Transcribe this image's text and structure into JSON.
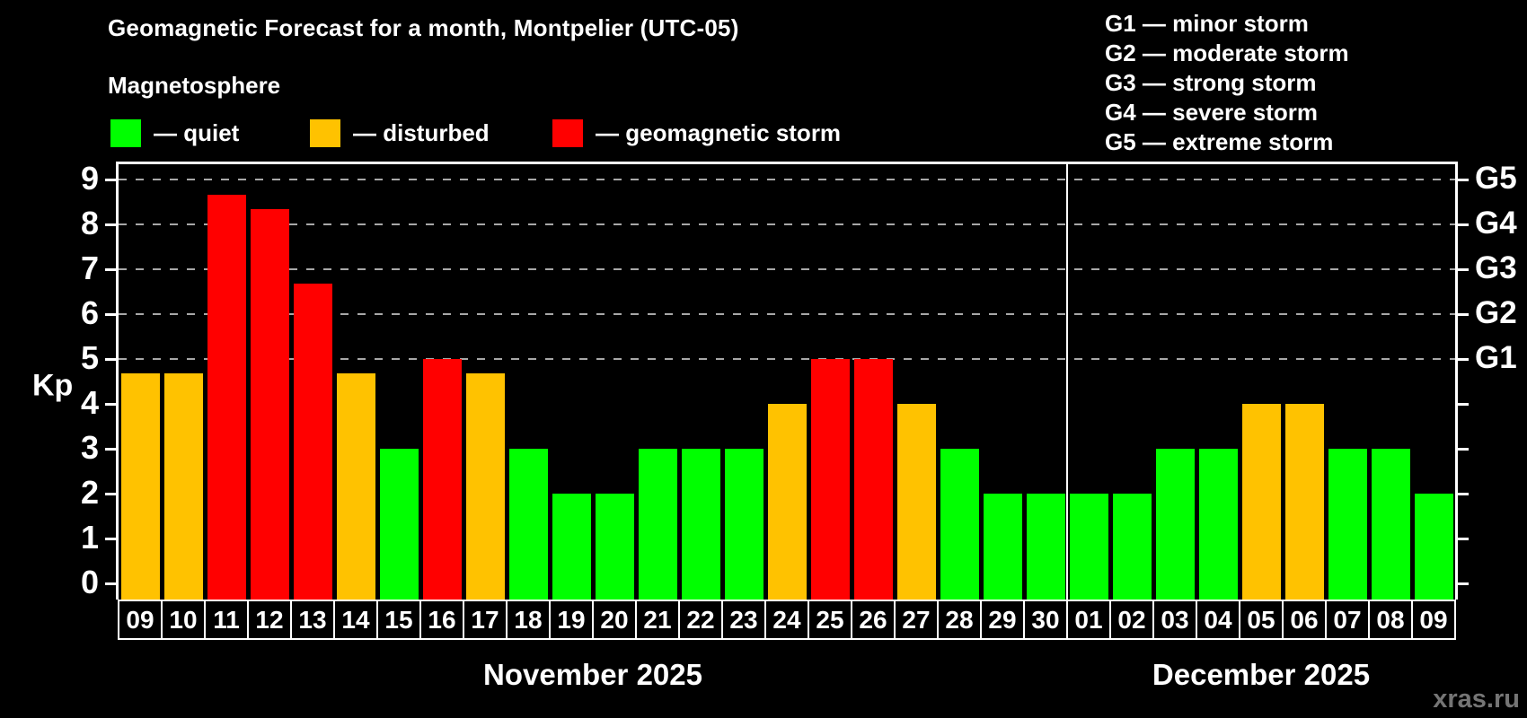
{
  "header": {
    "title": "Geomagnetic Forecast for a month, Montpelier (UTC-05)",
    "subtitle": "Magnetosphere"
  },
  "legend": {
    "items": [
      {
        "status": "quiet",
        "label": "— quiet",
        "color": "#00ff00"
      },
      {
        "status": "disturbed",
        "label": "— disturbed",
        "color": "#ffc200"
      },
      {
        "status": "storm",
        "label": "— geomagnetic storm",
        "color": "#ff0000"
      }
    ]
  },
  "g_legend": {
    "lines": [
      "G1 — minor storm",
      "G2 — moderate storm",
      "G3 — strong storm",
      "G4 — severe storm",
      "G5 — extreme storm"
    ]
  },
  "chart_data": {
    "type": "bar",
    "title": "Geomagnetic Forecast for a month, Montpelier (UTC-05)",
    "ylabel": "Kp",
    "ylim": [
      -0.36,
      9.34
    ],
    "yticks": [
      0,
      1,
      2,
      3,
      4,
      5,
      6,
      7,
      8,
      9
    ],
    "gridlines": [
      5,
      6,
      7,
      8,
      9
    ],
    "grid_style": "dashed",
    "legend_position": "top-left",
    "right_axis": [
      {
        "label": "G1",
        "value": 5
      },
      {
        "label": "G2",
        "value": 6
      },
      {
        "label": "G3",
        "value": 7
      },
      {
        "label": "G4",
        "value": 8
      },
      {
        "label": "G5",
        "value": 9
      }
    ],
    "months": [
      {
        "label": "November 2025",
        "days": 22
      },
      {
        "label": "December 2025",
        "days": 9
      }
    ],
    "bars": [
      {
        "day": "09",
        "kp": 4.67,
        "status": "disturbed"
      },
      {
        "day": "10",
        "kp": 4.67,
        "status": "disturbed"
      },
      {
        "day": "11",
        "kp": 8.67,
        "status": "storm"
      },
      {
        "day": "12",
        "kp": 8.33,
        "status": "storm"
      },
      {
        "day": "13",
        "kp": 6.67,
        "status": "storm"
      },
      {
        "day": "14",
        "kp": 4.67,
        "status": "disturbed"
      },
      {
        "day": "15",
        "kp": 3,
        "status": "quiet"
      },
      {
        "day": "16",
        "kp": 5,
        "status": "storm"
      },
      {
        "day": "17",
        "kp": 4.67,
        "status": "disturbed"
      },
      {
        "day": "18",
        "kp": 3,
        "status": "quiet"
      },
      {
        "day": "19",
        "kp": 2,
        "status": "quiet"
      },
      {
        "day": "20",
        "kp": 2,
        "status": "quiet"
      },
      {
        "day": "21",
        "kp": 3,
        "status": "quiet"
      },
      {
        "day": "22",
        "kp": 3,
        "status": "quiet"
      },
      {
        "day": "23",
        "kp": 3,
        "status": "quiet"
      },
      {
        "day": "24",
        "kp": 4,
        "status": "disturbed"
      },
      {
        "day": "25",
        "kp": 5,
        "status": "storm"
      },
      {
        "day": "26",
        "kp": 5,
        "status": "storm"
      },
      {
        "day": "27",
        "kp": 4,
        "status": "disturbed"
      },
      {
        "day": "28",
        "kp": 3,
        "status": "quiet"
      },
      {
        "day": "29",
        "kp": 2,
        "status": "quiet"
      },
      {
        "day": "30",
        "kp": 2,
        "status": "quiet"
      },
      {
        "day": "01",
        "kp": 2,
        "status": "quiet"
      },
      {
        "day": "02",
        "kp": 2,
        "status": "quiet"
      },
      {
        "day": "03",
        "kp": 3,
        "status": "quiet"
      },
      {
        "day": "04",
        "kp": 3,
        "status": "quiet"
      },
      {
        "day": "05",
        "kp": 4,
        "status": "disturbed"
      },
      {
        "day": "06",
        "kp": 4,
        "status": "disturbed"
      },
      {
        "day": "07",
        "kp": 3,
        "status": "quiet"
      },
      {
        "day": "08",
        "kp": 3,
        "status": "quiet"
      },
      {
        "day": "09",
        "kp": 2,
        "status": "quiet"
      }
    ]
  },
  "colors": {
    "background": "#000000",
    "text": "#ffffff",
    "axis": "#ffffff",
    "grid": "#a8a8a8",
    "watermark": "#757575"
  },
  "watermark": "xras.ru"
}
